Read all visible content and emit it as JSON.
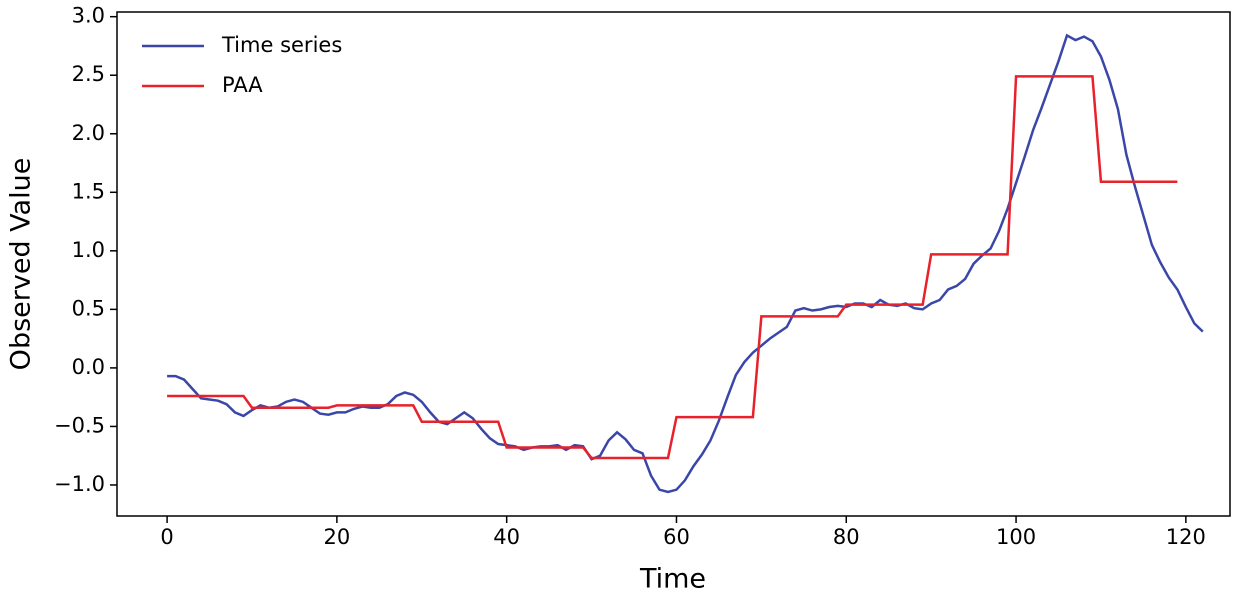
{
  "chart_data": {
    "type": "line",
    "xlabel": "Time",
    "ylabel": "Observed Value",
    "xlim": [
      -5.9,
      125.2
    ],
    "ylim": [
      -1.265,
      3.04
    ],
    "xticks": [
      0,
      20,
      40,
      60,
      80,
      100,
      120
    ],
    "yticks": [
      {
        "value": -1,
        "label": "−1.0"
      },
      {
        "value": -0.5,
        "label": "−0.5"
      },
      {
        "value": 0,
        "label": "0.0"
      },
      {
        "value": 0.5,
        "label": "0.5"
      },
      {
        "value": 1,
        "label": "1.0"
      },
      {
        "value": 1.5,
        "label": "1.5"
      },
      {
        "value": 2,
        "label": "2.0"
      },
      {
        "value": 2.5,
        "label": "2.5"
      },
      {
        "value": 3,
        "label": "3.0"
      }
    ],
    "legend": "upper left",
    "series": [
      {
        "name": "Time series",
        "color": "#3a47a8",
        "x": [
          0,
          1,
          2,
          3,
          4,
          5,
          6,
          7,
          8,
          9,
          10,
          11,
          12,
          13,
          14,
          15,
          16,
          17,
          18,
          19,
          20,
          21,
          22,
          23,
          24,
          25,
          26,
          27,
          28,
          29,
          30,
          31,
          32,
          33,
          34,
          35,
          36,
          37,
          38,
          39,
          40,
          41,
          42,
          43,
          44,
          45,
          46,
          47,
          48,
          49,
          50,
          51,
          52,
          53,
          54,
          55,
          56,
          57,
          58,
          59,
          60,
          61,
          62,
          63,
          64,
          65,
          66,
          67,
          68,
          69,
          70,
          71,
          72,
          73,
          74,
          75,
          76,
          77,
          78,
          79,
          80,
          81,
          82,
          83,
          84,
          85,
          86,
          87,
          88,
          89,
          90,
          91,
          92,
          93,
          94,
          95,
          96,
          97,
          98,
          99,
          100,
          101,
          102,
          103,
          104,
          105,
          106,
          107,
          108,
          109,
          110,
          111,
          112,
          113,
          114,
          115,
          116,
          117,
          118,
          119,
          120,
          121,
          122
        ],
        "values": [
          -0.07,
          -0.07,
          -0.1,
          -0.18,
          -0.26,
          -0.27,
          -0.28,
          -0.31,
          -0.38,
          -0.41,
          -0.36,
          -0.32,
          -0.34,
          -0.33,
          -0.29,
          -0.27,
          -0.29,
          -0.34,
          -0.39,
          -0.4,
          -0.38,
          -0.38,
          -0.35,
          -0.33,
          -0.34,
          -0.34,
          -0.31,
          -0.24,
          -0.21,
          -0.23,
          -0.29,
          -0.38,
          -0.46,
          -0.48,
          -0.43,
          -0.38,
          -0.43,
          -0.52,
          -0.6,
          -0.65,
          -0.66,
          -0.67,
          -0.7,
          -0.68,
          -0.67,
          -0.67,
          -0.66,
          -0.7,
          -0.66,
          -0.67,
          -0.78,
          -0.75,
          -0.62,
          -0.55,
          -0.61,
          -0.7,
          -0.73,
          -0.92,
          -1.04,
          -1.06,
          -1.04,
          -0.96,
          -0.84,
          -0.74,
          -0.62,
          -0.45,
          -0.25,
          -0.06,
          0.05,
          0.13,
          0.19,
          0.25,
          0.3,
          0.35,
          0.49,
          0.51,
          0.49,
          0.5,
          0.52,
          0.53,
          0.52,
          0.55,
          0.55,
          0.52,
          0.58,
          0.54,
          0.53,
          0.55,
          0.51,
          0.5,
          0.55,
          0.58,
          0.67,
          0.7,
          0.76,
          0.89,
          0.96,
          1.02,
          1.17,
          1.36,
          1.58,
          1.8,
          2.03,
          2.22,
          2.42,
          2.62,
          2.84,
          2.8,
          2.83,
          2.79,
          2.66,
          2.46,
          2.21,
          1.82,
          1.55,
          1.3,
          1.05,
          0.9,
          0.77,
          0.67,
          0.52,
          0.38,
          0.31
        ]
      },
      {
        "name": "PAA",
        "color": "#e8222a",
        "x": [
          0,
          9,
          10,
          19,
          20,
          29,
          30,
          39,
          40,
          49,
          50,
          59,
          60,
          69,
          70,
          79,
          80,
          89,
          90,
          99,
          100,
          109,
          110,
          119
        ],
        "values": [
          -0.24,
          -0.24,
          -0.34,
          -0.34,
          -0.32,
          -0.32,
          -0.46,
          -0.46,
          -0.68,
          -0.68,
          -0.77,
          -0.77,
          -0.42,
          -0.42,
          0.44,
          0.44,
          0.54,
          0.54,
          0.97,
          0.97,
          2.49,
          2.49,
          1.59,
          1.59
        ]
      }
    ]
  }
}
